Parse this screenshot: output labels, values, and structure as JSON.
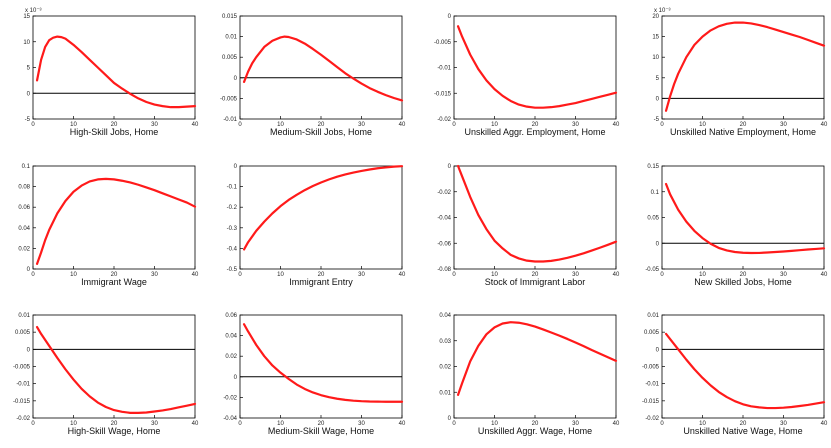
{
  "chart_data": [
    {
      "type": "line",
      "xlabel": "High-Skill Jobs, Home",
      "exponent": "x 10⁻³",
      "xlim": [
        0,
        40
      ],
      "xticks": [
        0,
        10,
        20,
        30,
        40
      ],
      "ylim": [
        -5,
        15
      ],
      "yticks": [
        -5,
        0,
        5,
        10,
        15
      ],
      "ytick_labels": [
        "-5",
        "0",
        "5",
        "10",
        "15"
      ],
      "zero_line": true,
      "x": [
        1,
        2,
        3,
        4,
        5,
        6,
        7,
        8,
        9,
        10,
        12,
        14,
        16,
        18,
        20,
        22,
        24,
        26,
        28,
        30,
        32,
        34,
        36,
        38,
        40
      ],
      "y": [
        2.5,
        6.5,
        9,
        10.3,
        10.8,
        11,
        10.9,
        10.6,
        10,
        9.4,
        8,
        6.5,
        5,
        3.5,
        2,
        0.9,
        -0.1,
        -1,
        -1.7,
        -2.2,
        -2.5,
        -2.7,
        -2.7,
        -2.6,
        -2.5
      ]
    },
    {
      "type": "line",
      "xlabel": "Medium-Skill Jobs, Home",
      "xlim": [
        0,
        40
      ],
      "xticks": [
        0,
        10,
        20,
        30,
        40
      ],
      "ylim": [
        -0.01,
        0.015
      ],
      "yticks": [
        -0.01,
        -0.005,
        0,
        0.005,
        0.01,
        0.015
      ],
      "ytick_labels": [
        "-0.01",
        "-0.005",
        "0",
        "0.005",
        "0.01",
        "0.015"
      ],
      "zero_line": true,
      "x": [
        1,
        2,
        3,
        4,
        6,
        8,
        10,
        11,
        12,
        14,
        16,
        18,
        20,
        22,
        24,
        26,
        28,
        30,
        32,
        34,
        36,
        38,
        40
      ],
      "y": [
        -0.001,
        0.0015,
        0.0035,
        0.005,
        0.0075,
        0.009,
        0.0098,
        0.01,
        0.0099,
        0.0093,
        0.0083,
        0.007,
        0.0056,
        0.0041,
        0.0026,
        0.0011,
        -0.0002,
        -0.0014,
        -0.0025,
        -0.0034,
        -0.0042,
        -0.0049,
        -0.0055
      ]
    },
    {
      "type": "line",
      "xlabel": "Unskilled Aggr. Employment, Home",
      "xlim": [
        0,
        40
      ],
      "xticks": [
        0,
        10,
        20,
        30,
        40
      ],
      "ylim": [
        -0.02,
        0
      ],
      "yticks": [
        -0.02,
        -0.015,
        -0.01,
        -0.005,
        0
      ],
      "ytick_labels": [
        "-0.02",
        "-0.015",
        "-0.01",
        "-0.005",
        "0"
      ],
      "zero_line": false,
      "x": [
        1,
        2,
        4,
        6,
        8,
        10,
        12,
        14,
        16,
        18,
        20,
        22,
        24,
        26,
        28,
        30,
        32,
        34,
        36,
        38,
        40
      ],
      "y": [
        -0.002,
        -0.004,
        -0.0075,
        -0.0103,
        -0.0125,
        -0.0142,
        -0.0155,
        -0.0165,
        -0.0172,
        -0.0176,
        -0.0178,
        -0.0178,
        -0.0177,
        -0.0175,
        -0.0172,
        -0.0169,
        -0.0165,
        -0.0161,
        -0.0157,
        -0.0153,
        -0.0149
      ]
    },
    {
      "type": "line",
      "xlabel": "Unskilled Native Employment, Home",
      "exponent": "x 10⁻³",
      "xlim": [
        0,
        40
      ],
      "xticks": [
        0,
        10,
        20,
        30,
        40
      ],
      "ylim": [
        -5,
        20
      ],
      "yticks": [
        -5,
        0,
        5,
        10,
        15,
        20
      ],
      "ytick_labels": [
        "-5",
        "0",
        "5",
        "10",
        "15",
        "20"
      ],
      "zero_line": true,
      "x": [
        1,
        2,
        3,
        4,
        6,
        8,
        10,
        12,
        14,
        16,
        18,
        20,
        22,
        24,
        26,
        28,
        30,
        32,
        34,
        36,
        38,
        40
      ],
      "y": [
        -3,
        0.5,
        3.5,
        6,
        10,
        13,
        15,
        16.5,
        17.5,
        18.1,
        18.4,
        18.4,
        18.2,
        17.8,
        17.3,
        16.7,
        16.1,
        15.5,
        14.9,
        14.2,
        13.5,
        12.8
      ]
    },
    {
      "type": "line",
      "xlabel": "Immigrant Wage",
      "xlim": [
        0,
        40
      ],
      "xticks": [
        0,
        10,
        20,
        30,
        40
      ],
      "ylim": [
        0,
        0.1
      ],
      "yticks": [
        0,
        0.02,
        0.04,
        0.06,
        0.08,
        0.1
      ],
      "ytick_labels": [
        "0",
        "0.02",
        "0.04",
        "0.06",
        "0.08",
        "0.1"
      ],
      "zero_line": false,
      "x": [
        1,
        2,
        3,
        4,
        6,
        8,
        10,
        12,
        14,
        16,
        18,
        20,
        22,
        24,
        26,
        28,
        30,
        32,
        34,
        36,
        38,
        40
      ],
      "y": [
        0.005,
        0.016,
        0.028,
        0.038,
        0.054,
        0.066,
        0.075,
        0.081,
        0.085,
        0.087,
        0.0875,
        0.087,
        0.0857,
        0.084,
        0.0818,
        0.0792,
        0.0765,
        0.0735,
        0.0705,
        0.0675,
        0.0645,
        0.0605
      ]
    },
    {
      "type": "line",
      "xlabel": "Immigrant Entry",
      "xlim": [
        0,
        40
      ],
      "xticks": [
        0,
        10,
        20,
        30,
        40
      ],
      "ylim": [
        -0.5,
        0
      ],
      "yticks": [
        -0.5,
        -0.4,
        -0.3,
        -0.2,
        -0.1,
        0
      ],
      "ytick_labels": [
        "-0.5",
        "-0.4",
        "-0.3",
        "-0.2",
        "-0.1",
        "0"
      ],
      "zero_line": false,
      "x": [
        1,
        2,
        4,
        6,
        8,
        10,
        12,
        14,
        16,
        18,
        20,
        22,
        24,
        26,
        28,
        30,
        32,
        34,
        36,
        38,
        40
      ],
      "y": [
        -0.405,
        -0.37,
        -0.315,
        -0.27,
        -0.23,
        -0.195,
        -0.165,
        -0.14,
        -0.117,
        -0.097,
        -0.08,
        -0.065,
        -0.052,
        -0.041,
        -0.032,
        -0.024,
        -0.017,
        -0.011,
        -0.007,
        -0.003,
        -0.001
      ]
    },
    {
      "type": "line",
      "xlabel": "Stock of Immigrant Labor",
      "xlim": [
        0,
        40
      ],
      "xticks": [
        0,
        10,
        20,
        30,
        40
      ],
      "ylim": [
        -0.08,
        0
      ],
      "yticks": [
        -0.08,
        -0.06,
        -0.04,
        -0.02,
        0
      ],
      "ytick_labels": [
        "-0.08",
        "-0.06",
        "-0.04",
        "-0.02",
        "0"
      ],
      "zero_line": false,
      "x": [
        1,
        2,
        4,
        6,
        8,
        10,
        12,
        14,
        16,
        18,
        20,
        22,
        24,
        26,
        28,
        30,
        32,
        34,
        36,
        38,
        40
      ],
      "y": [
        0,
        -0.008,
        -0.024,
        -0.038,
        -0.049,
        -0.058,
        -0.064,
        -0.069,
        -0.0718,
        -0.0735,
        -0.0742,
        -0.0742,
        -0.0737,
        -0.0727,
        -0.0713,
        -0.0697,
        -0.0678,
        -0.0657,
        -0.0635,
        -0.0612,
        -0.0588
      ]
    },
    {
      "type": "line",
      "xlabel": "New Skilled Jobs, Home",
      "xlim": [
        0,
        40
      ],
      "xticks": [
        0,
        10,
        20,
        30,
        40
      ],
      "ylim": [
        -0.05,
        0.15
      ],
      "yticks": [
        -0.05,
        0,
        0.05,
        0.1,
        0.15
      ],
      "ytick_labels": [
        "-0.05",
        "0",
        "0.05",
        "0.1",
        "0.15"
      ],
      "zero_line": true,
      "x": [
        1,
        2,
        4,
        6,
        8,
        10,
        12,
        14,
        16,
        18,
        20,
        22,
        24,
        26,
        28,
        30,
        32,
        34,
        36,
        38,
        40
      ],
      "y": [
        0.115,
        0.095,
        0.065,
        0.042,
        0.024,
        0.01,
        -0.001,
        -0.009,
        -0.014,
        -0.017,
        -0.0185,
        -0.019,
        -0.0188,
        -0.018,
        -0.017,
        -0.016,
        -0.0148,
        -0.0135,
        -0.0122,
        -0.011,
        -0.0098
      ]
    },
    {
      "type": "line",
      "xlabel": "High-Skill Wage, Home",
      "xlim": [
        0,
        40
      ],
      "xticks": [
        0,
        10,
        20,
        30,
        40
      ],
      "ylim": [
        -0.02,
        0.01
      ],
      "yticks": [
        -0.02,
        -0.015,
        -0.01,
        -0.005,
        0,
        0.005,
        0.01
      ],
      "ytick_labels": [
        "-0.02",
        "-0.015",
        "-0.01",
        "-0.005",
        "0",
        "0.005",
        "0.01"
      ],
      "zero_line": true,
      "x": [
        1,
        2,
        4,
        6,
        8,
        10,
        12,
        14,
        16,
        18,
        20,
        22,
        24,
        26,
        28,
        30,
        32,
        34,
        36,
        38,
        40
      ],
      "y": [
        0.0065,
        0.0045,
        0.001,
        -0.0025,
        -0.0058,
        -0.0088,
        -0.0115,
        -0.0137,
        -0.0155,
        -0.0168,
        -0.0177,
        -0.0182,
        -0.0185,
        -0.0185,
        -0.0184,
        -0.0181,
        -0.0178,
        -0.0174,
        -0.0169,
        -0.0164,
        -0.0159
      ]
    },
    {
      "type": "line",
      "xlabel": "Medium-Skill Wage, Home",
      "xlim": [
        0,
        40
      ],
      "xticks": [
        0,
        10,
        20,
        30,
        40
      ],
      "ylim": [
        -0.04,
        0.06
      ],
      "yticks": [
        -0.04,
        -0.02,
        0,
        0.02,
        0.04,
        0.06
      ],
      "ytick_labels": [
        "-0.04",
        "-0.02",
        "0",
        "0.02",
        "0.04",
        "0.06"
      ],
      "zero_line": true,
      "x": [
        1,
        2,
        4,
        6,
        8,
        10,
        12,
        14,
        16,
        18,
        20,
        22,
        24,
        26,
        28,
        30,
        32,
        34,
        36,
        38,
        40
      ],
      "y": [
        0.051,
        0.044,
        0.031,
        0.02,
        0.011,
        0.004,
        -0.002,
        -0.0075,
        -0.0118,
        -0.0152,
        -0.0178,
        -0.0198,
        -0.0213,
        -0.0224,
        -0.0232,
        -0.0237,
        -0.024,
        -0.0241,
        -0.0242,
        -0.0242,
        -0.0242
      ]
    },
    {
      "type": "line",
      "xlabel": "Unskilled Aggr. Wage, Home",
      "xlim": [
        0,
        40
      ],
      "xticks": [
        0,
        10,
        20,
        30,
        40
      ],
      "ylim": [
        0,
        0.04
      ],
      "yticks": [
        0,
        0.01,
        0.02,
        0.03,
        0.04
      ],
      "ytick_labels": [
        "0",
        "0.01",
        "0.02",
        "0.03",
        "0.04"
      ],
      "zero_line": false,
      "x": [
        1,
        2,
        4,
        6,
        8,
        10,
        12,
        14,
        16,
        18,
        20,
        22,
        24,
        26,
        28,
        30,
        32,
        34,
        36,
        38,
        40
      ],
      "y": [
        0.009,
        0.0135,
        0.022,
        0.028,
        0.0325,
        0.0352,
        0.0367,
        0.0372,
        0.037,
        0.0364,
        0.0355,
        0.0344,
        0.0332,
        0.032,
        0.0307,
        0.0293,
        0.0279,
        0.0264,
        0.025,
        0.0236,
        0.0222
      ]
    },
    {
      "type": "line",
      "xlabel": "Unskilled Native Wage, Home",
      "xlim": [
        0,
        40
      ],
      "xticks": [
        0,
        10,
        20,
        30,
        40
      ],
      "ylim": [
        -0.02,
        0.01
      ],
      "yticks": [
        -0.02,
        -0.015,
        -0.01,
        -0.005,
        0,
        0.005,
        0.01
      ],
      "ytick_labels": [
        "-0.02",
        "-0.015",
        "-0.01",
        "-0.005",
        "0",
        "0.005",
        "0.01"
      ],
      "zero_line": true,
      "x": [
        1,
        2,
        4,
        6,
        8,
        10,
        12,
        14,
        16,
        18,
        20,
        22,
        24,
        26,
        28,
        30,
        32,
        34,
        36,
        38,
        40
      ],
      "y": [
        0.0045,
        0.003,
        0,
        -0.003,
        -0.0058,
        -0.0083,
        -0.0105,
        -0.0124,
        -0.0139,
        -0.0151,
        -0.016,
        -0.0166,
        -0.0169,
        -0.0171,
        -0.0171,
        -0.017,
        -0.0168,
        -0.0165,
        -0.0162,
        -0.0158,
        -0.0154
      ]
    }
  ]
}
